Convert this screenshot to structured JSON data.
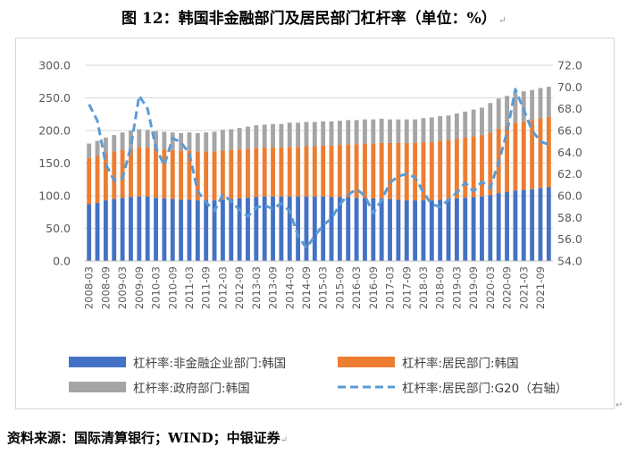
{
  "title": "图 12：韩国非金融部门及居民部门杠杆率（单位：%）",
  "source": "资料来源：国际清算银行；WIND；中银证券",
  "chart_data": {
    "type": "bar",
    "stacked": true,
    "categories": [
      "2008-03",
      "2008-06",
      "2008-09",
      "2008-12",
      "2009-03",
      "2009-06",
      "2009-09",
      "2009-12",
      "2010-03",
      "2010-06",
      "2010-09",
      "2010-12",
      "2011-03",
      "2011-06",
      "2011-09",
      "2011-12",
      "2012-03",
      "2012-06",
      "2012-09",
      "2012-12",
      "2013-03",
      "2013-06",
      "2013-09",
      "2013-12",
      "2014-03",
      "2014-06",
      "2014-09",
      "2014-12",
      "2015-03",
      "2015-06",
      "2015-09",
      "2015-12",
      "2016-03",
      "2016-06",
      "2016-09",
      "2016-12",
      "2017-03",
      "2017-06",
      "2017-09",
      "2017-12",
      "2018-03",
      "2018-06",
      "2018-09",
      "2018-12",
      "2019-03",
      "2019-06",
      "2019-09",
      "2019-12",
      "2020-03",
      "2020-06",
      "2020-09",
      "2020-12",
      "2021-03",
      "2021-06",
      "2021-09",
      "2021-12"
    ],
    "x_tick_labels": [
      "2008-03",
      "2008-09",
      "2009-03",
      "2009-09",
      "2010-03",
      "2010-09",
      "2011-03",
      "2011-09",
      "2012-03",
      "2012-09",
      "2013-03",
      "2013-09",
      "2014-03",
      "2014-09",
      "2015-03",
      "2015-09",
      "2016-03",
      "2016-09",
      "2017-03",
      "2017-09",
      "2018-03",
      "2018-09",
      "2019-03",
      "2019-09",
      "2020-03",
      "2020-09",
      "2021-03",
      "2021-09"
    ],
    "y_left": {
      "min": 0,
      "max": 300,
      "step": 50,
      "tick_labels": [
        "0.0",
        "50.0",
        "100.0",
        "150.0",
        "200.0",
        "250.0",
        "300.0"
      ]
    },
    "y_right": {
      "min": 54,
      "max": 72,
      "step": 2,
      "tick_labels": [
        "54.0",
        "56.0",
        "58.0",
        "60.0",
        "62.0",
        "64.0",
        "66.0",
        "68.0",
        "70.0",
        "72.0"
      ]
    },
    "grid": true,
    "legend_position": "bottom",
    "series": [
      {
        "name": "杠杆率:非金融企业部门:韩国",
        "kind": "bar",
        "axis": "left",
        "color": "#4472c4",
        "values": [
          87,
          89,
          93,
          95,
          97,
          98,
          99,
          99,
          97,
          96,
          95,
          94,
          94,
          93,
          93,
          93,
          94,
          95,
          96,
          97,
          98,
          99,
          99,
          99,
          99,
          99,
          99,
          99,
          99,
          98,
          98,
          98,
          97,
          97,
          96,
          96,
          95,
          94,
          93,
          93,
          93,
          93,
          94,
          95,
          96,
          97,
          98,
          99,
          101,
          104,
          106,
          108,
          109,
          110,
          112,
          113
        ]
      },
      {
        "name": "杠杆率:居民部门:韩国",
        "kind": "bar",
        "axis": "left",
        "color": "#ed7d31",
        "values": [
          71,
          72,
          72,
          73,
          73,
          74,
          75,
          75,
          75,
          75,
          75,
          75,
          75,
          75,
          75,
          75,
          75,
          75,
          75,
          75,
          75,
          75,
          75,
          75,
          76,
          76,
          77,
          77,
          78,
          79,
          80,
          81,
          82,
          83,
          84,
          85,
          86,
          87,
          88,
          88,
          89,
          89,
          90,
          90,
          91,
          92,
          93,
          94,
          96,
          99,
          102,
          104,
          105,
          106,
          107,
          108
        ]
      },
      {
        "name": "杠杆率:政府部门:韩国",
        "kind": "bar",
        "axis": "left",
        "color": "#a5a5a5",
        "values": [
          22,
          23,
          24,
          25,
          27,
          28,
          28,
          27,
          27,
          27,
          27,
          27,
          28,
          28,
          29,
          30,
          32,
          32,
          33,
          34,
          35,
          35,
          36,
          36,
          37,
          37,
          37,
          37,
          37,
          37,
          37,
          37,
          37,
          37,
          37,
          37,
          36,
          36,
          36,
          36,
          37,
          38,
          38,
          38,
          39,
          40,
          41,
          42,
          45,
          46,
          45,
          45,
          46,
          46,
          46,
          46
        ]
      },
      {
        "name": "杠杆率:居民部门:G20（右轴）",
        "kind": "line",
        "axis": "right",
        "color": "#5b9bd5",
        "dash": true,
        "values": [
          68.4,
          66.9,
          62.9,
          61.4,
          61.6,
          64.5,
          69.2,
          68.0,
          64.4,
          62.8,
          65.3,
          64.9,
          63.9,
          60.4,
          59.4,
          58.6,
          60.1,
          59.5,
          58.7,
          58.1,
          58.9,
          59.1,
          58.8,
          59.3,
          58.6,
          56.3,
          55.2,
          56.3,
          57.3,
          57.9,
          59.2,
          60.1,
          60.6,
          60.0,
          58.4,
          59.6,
          61.2,
          61.8,
          62.0,
          61.7,
          60.3,
          59.2,
          59.0,
          59.6,
          60.3,
          61.2,
          60.4,
          61.3,
          60.7,
          63.1,
          65.8,
          69.8,
          67.9,
          66.0,
          65.0,
          64.7
        ]
      }
    ]
  }
}
